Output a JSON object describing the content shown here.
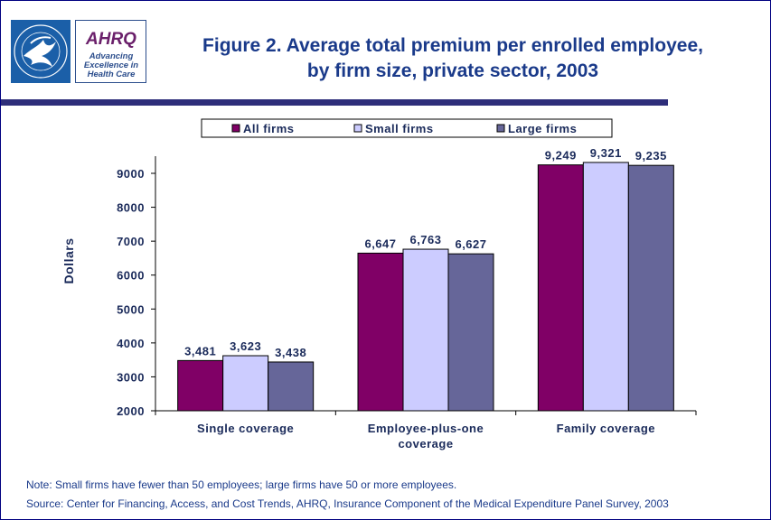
{
  "logos": {
    "hhs_icon": "hhs-eagle-seal",
    "ahrq_mark": "AHRQ",
    "ahrq_tagline": "Advancing\nExcellence in\nHealth Care"
  },
  "title_lines": [
    "Figure 2. Average total premium per enrolled employee,",
    "by firm size, private sector, 2003"
  ],
  "footnotes": {
    "note": "Note: Small firms have fewer than 50 employees; large firms have 50 or more employees.",
    "source": "Source: Center for Financing, Access, and Cost Trends, AHRQ, Insurance Component of the Medical Expenditure Panel Survey, 2003"
  },
  "colors": {
    "title": "#1a3a8a",
    "header_rule": "#2e2e7a",
    "axis_text": "#1a2a5a"
  },
  "chart_data": {
    "type": "bar",
    "title": "Figure 2. Average total premium per enrolled employee, by firm size, private sector, 2003",
    "xlabel": "",
    "ylabel": "Dollars",
    "ylim": [
      2000,
      9000
    ],
    "yticks": [
      2000,
      3000,
      4000,
      5000,
      6000,
      7000,
      8000,
      9000
    ],
    "grid": false,
    "legend_position": "top",
    "categories": [
      [
        "Single coverage"
      ],
      [
        "Employee-plus-one",
        "coverage"
      ],
      [
        "Family coverage"
      ]
    ],
    "series": [
      {
        "name": "All firms",
        "color": "#800066",
        "values": [
          3481,
          6647,
          9249
        ],
        "labels": [
          "3,481",
          "6,647",
          "9,249"
        ]
      },
      {
        "name": "Small firms",
        "color": "#ccccff",
        "values": [
          3623,
          6763,
          9321
        ],
        "labels": [
          "3,623",
          "6,763",
          "9,321"
        ]
      },
      {
        "name": "Large firms",
        "color": "#666699",
        "values": [
          3438,
          6627,
          9235
        ],
        "labels": [
          "3,438",
          "6,627",
          "9,235"
        ]
      }
    ]
  }
}
